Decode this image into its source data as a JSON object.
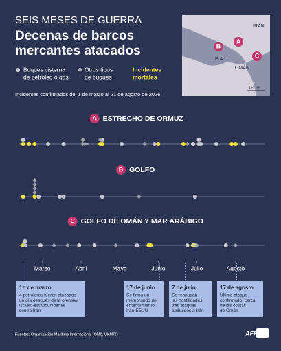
{
  "header": {
    "kicker": "SEIS MESES DE GUERRA",
    "title": [
      "Decenas de barcos",
      "mercantes atacados"
    ]
  },
  "map": {
    "labels": [
      "IRÁN",
      "E.A.U.",
      "OMÁN"
    ],
    "markers": [
      "A",
      "B",
      "C"
    ],
    "scale": "150 km"
  },
  "legend": {
    "tanker": [
      "Buques cisterna",
      "de petróleo o gas"
    ],
    "other": [
      "Otros tipos",
      "de buques"
    ],
    "fatal": [
      "Incidentes",
      "mortales"
    ]
  },
  "subtitle": "Incidentes confirmados del 1 de marzo al 21 de agosto de 2026",
  "chart_data": {
    "type": "dot-timeline",
    "xlim": [
      -0.1,
      6.25
    ],
    "xticks": [
      {
        "value": 0.5,
        "label": "Marzo"
      },
      {
        "value": 1.5,
        "label": "Abril"
      },
      {
        "value": 2.5,
        "label": "Mayo"
      },
      {
        "value": 3.5,
        "label": "Junio"
      },
      {
        "value": 4.5,
        "label": "Julio"
      },
      {
        "value": 5.5,
        "label": "Agosto"
      }
    ],
    "panels": [
      {
        "letter": "A",
        "title": "ESTRECHO DE ORMUZ",
        "series": [
          {
            "name": "tanker",
            "color": "#c9c9cf",
            "x": [
              0.0,
              0.65,
              1.05,
              2.05,
              2.55,
              3.4,
              4.4,
              4.55,
              4.55,
              4.6,
              5.0,
              5.7
            ]
          },
          {
            "name": "other",
            "color": "#a4a4ad",
            "x": [
              1.55,
              1.55,
              1.6,
              1.65,
              2.0,
              3.15,
              4.25
            ]
          },
          {
            "name": "fatal",
            "color": "#f3e43a",
            "x": [
              0.0,
              0.15,
              0.3,
              2.0,
              2.05,
              3.5,
              4.15,
              5.4,
              5.5
            ]
          }
        ]
      },
      {
        "letter": "B",
        "title": "GOLFO",
        "series": [
          {
            "name": "tanker",
            "color": "#c9c9cf",
            "x": [
              0.4,
              0.95,
              1.05,
              2.05,
              4.45
            ]
          },
          {
            "name": "other",
            "color": "#a4a4ad",
            "x": [
              0.3,
              0.3,
              0.3,
              0.3,
              3.0
            ]
          },
          {
            "name": "fatal",
            "color": "#f3e43a",
            "x": [
              0.0,
              0.3
            ]
          }
        ]
      },
      {
        "letter": "C",
        "title": "GOLFO DE OMÁN Y MAR ARÁBIGO",
        "series": [
          {
            "name": "tanker",
            "color": "#c9c9cf",
            "x": [
              0.05,
              0.05,
              0.45,
              1.45,
              1.85,
              2.95,
              4.25,
              4.45,
              5.25
            ]
          },
          {
            "name": "other",
            "color": "#a4a4ad",
            "x": [
              0.8,
              1.15,
              2.4,
              4.5,
              5.5
            ]
          },
          {
            "name": "fatal",
            "color": "#f3e43a",
            "x": [
              0.0,
              3.25,
              3.3,
              4.4
            ]
          }
        ]
      }
    ]
  },
  "events": [
    {
      "date": "1ᵉʳ de marzo",
      "text": [
        "4 petroleros fueron atacados",
        "un día después de la ofensiva",
        "israelo-estadounidense",
        "contra Irán"
      ]
    },
    {
      "date": "17 de junio",
      "text": [
        "Se firma un",
        "memorando de",
        "entendimiento",
        "Irán-EEUU"
      ]
    },
    {
      "date": "7 de julio",
      "text": [
        "Se reanudan",
        "las hostilidades",
        "tras ataques",
        "atribuidos a Irán"
      ]
    },
    {
      "date": "17 de agosto",
      "text": [
        "Último ataque",
        "confirmado, cerca",
        "de las costas",
        "de Omán"
      ]
    }
  ],
  "footer": {
    "source": "Fuentes: Organización Marítima Internacional (OMI), UKMTO",
    "logo": "AFP"
  }
}
